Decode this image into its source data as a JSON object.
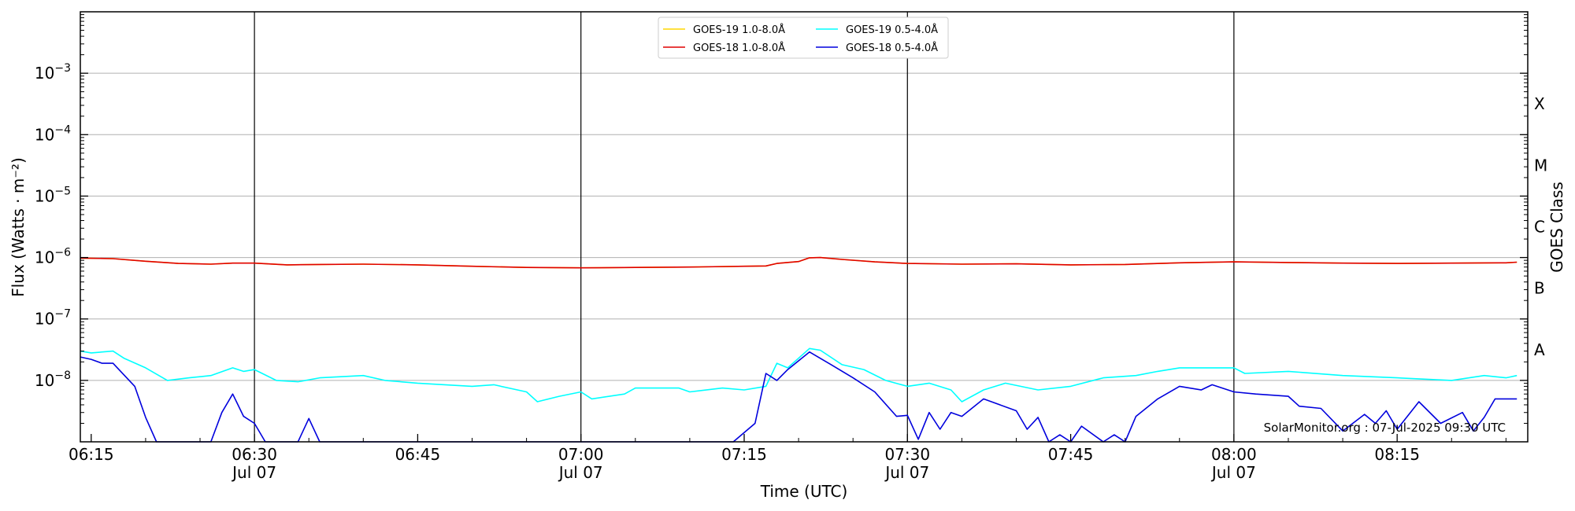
{
  "chart_data": {
    "type": "line",
    "title": "",
    "xlabel": "Time (UTC)",
    "ylabel": "Flux (Watts · m⁻²)",
    "ylabel_right": "GOES Class",
    "y_scale": "log",
    "ylim": [
      1e-09,
      0.01
    ],
    "xlim": [
      "06:14",
      "08:27"
    ],
    "grid": "horizontal",
    "legend_position": "top-center",
    "credit": "SolarMonitor.org : 07-Jul-2025 09:30 UTC",
    "y_ticks": [
      {
        "value": 0.001,
        "base": "10",
        "exp": "−3"
      },
      {
        "value": 0.0001,
        "base": "10",
        "exp": "−4"
      },
      {
        "value": 1e-05,
        "base": "10",
        "exp": "−5"
      },
      {
        "value": 1e-06,
        "base": "10",
        "exp": "−6"
      },
      {
        "value": 1e-07,
        "base": "10",
        "exp": "−7"
      },
      {
        "value": 1e-08,
        "base": "10",
        "exp": "−8"
      }
    ],
    "x_ticks": [
      {
        "time": "06:15",
        "label": "06:15",
        "sublabel": ""
      },
      {
        "time": "06:30",
        "label": "06:30",
        "sublabel": "Jul 07"
      },
      {
        "time": "06:45",
        "label": "06:45",
        "sublabel": ""
      },
      {
        "time": "07:00",
        "label": "07:00",
        "sublabel": "Jul 07"
      },
      {
        "time": "07:15",
        "label": "07:15",
        "sublabel": ""
      },
      {
        "time": "07:30",
        "label": "07:30",
        "sublabel": "Jul 07"
      },
      {
        "time": "07:45",
        "label": "07:45",
        "sublabel": ""
      },
      {
        "time": "08:00",
        "label": "08:00",
        "sublabel": "Jul 07"
      },
      {
        "time": "08:15",
        "label": "08:15",
        "sublabel": ""
      }
    ],
    "vlines": [
      "06:30",
      "07:00",
      "07:30",
      "08:00"
    ],
    "goes_classes": [
      {
        "label": "A",
        "value": 3.16e-08
      },
      {
        "label": "B",
        "value": 3.16e-07
      },
      {
        "label": "C",
        "value": 3.16e-06
      },
      {
        "label": "M",
        "value": 3.16e-05
      },
      {
        "label": "X",
        "value": 0.000316
      }
    ],
    "series": [
      {
        "name": "GOES-19 1.0-8.0Å",
        "color": "#ffd700",
        "points": [
          [
            "06:14",
            9.8e-07
          ],
          [
            "06:17",
            9.6e-07
          ],
          [
            "06:20",
            8.7e-07
          ],
          [
            "06:23",
            8e-07
          ],
          [
            "06:26",
            7.8e-07
          ],
          [
            "06:28",
            8.1e-07
          ],
          [
            "06:30",
            8.1e-07
          ],
          [
            "06:33",
            7.6e-07
          ],
          [
            "06:36",
            7.7e-07
          ],
          [
            "06:40",
            7.8e-07
          ],
          [
            "06:45",
            7.6e-07
          ],
          [
            "06:50",
            7.2e-07
          ],
          [
            "06:55",
            6.9e-07
          ],
          [
            "07:00",
            6.8e-07
          ],
          [
            "07:05",
            6.9e-07
          ],
          [
            "07:10",
            7e-07
          ],
          [
            "07:15",
            7.2e-07
          ],
          [
            "07:17",
            7.3e-07
          ],
          [
            "07:18",
            8e-07
          ],
          [
            "07:20",
            8.6e-07
          ],
          [
            "07:21",
            9.9e-07
          ],
          [
            "07:22",
            1e-06
          ],
          [
            "07:24",
            9.3e-07
          ],
          [
            "07:27",
            8.5e-07
          ],
          [
            "07:30",
            8e-07
          ],
          [
            "07:35",
            7.8e-07
          ],
          [
            "07:40",
            7.9e-07
          ],
          [
            "07:45",
            7.6e-07
          ],
          [
            "07:50",
            7.7e-07
          ],
          [
            "07:55",
            8.2e-07
          ],
          [
            "08:00",
            8.5e-07
          ],
          [
            "08:05",
            8.3e-07
          ],
          [
            "08:10",
            8.1e-07
          ],
          [
            "08:15",
            8e-07
          ],
          [
            "08:20",
            8.1e-07
          ],
          [
            "08:25",
            8.2e-07
          ],
          [
            "08:26",
            8.4e-07
          ]
        ]
      },
      {
        "name": "GOES-18 1.0-8.0Å",
        "color": "#e00000",
        "points": [
          [
            "06:14",
            9.8e-07
          ],
          [
            "06:17",
            9.6e-07
          ],
          [
            "06:20",
            8.7e-07
          ],
          [
            "06:23",
            8e-07
          ],
          [
            "06:26",
            7.8e-07
          ],
          [
            "06:28",
            8.1e-07
          ],
          [
            "06:30",
            8.1e-07
          ],
          [
            "06:33",
            7.6e-07
          ],
          [
            "06:36",
            7.7e-07
          ],
          [
            "06:40",
            7.8e-07
          ],
          [
            "06:45",
            7.6e-07
          ],
          [
            "06:50",
            7.2e-07
          ],
          [
            "06:55",
            6.9e-07
          ],
          [
            "07:00",
            6.8e-07
          ],
          [
            "07:05",
            6.9e-07
          ],
          [
            "07:10",
            7e-07
          ],
          [
            "07:15",
            7.2e-07
          ],
          [
            "07:17",
            7.3e-07
          ],
          [
            "07:18",
            8e-07
          ],
          [
            "07:20",
            8.6e-07
          ],
          [
            "07:21",
            9.9e-07
          ],
          [
            "07:22",
            1e-06
          ],
          [
            "07:24",
            9.3e-07
          ],
          [
            "07:27",
            8.5e-07
          ],
          [
            "07:30",
            8e-07
          ],
          [
            "07:35",
            7.8e-07
          ],
          [
            "07:40",
            7.9e-07
          ],
          [
            "07:45",
            7.6e-07
          ],
          [
            "07:50",
            7.7e-07
          ],
          [
            "07:55",
            8.2e-07
          ],
          [
            "08:00",
            8.5e-07
          ],
          [
            "08:05",
            8.3e-07
          ],
          [
            "08:10",
            8.1e-07
          ],
          [
            "08:15",
            8e-07
          ],
          [
            "08:20",
            8.1e-07
          ],
          [
            "08:25",
            8.2e-07
          ],
          [
            "08:26",
            8.4e-07
          ]
        ]
      },
      {
        "name": "GOES-19 0.5-4.0Å",
        "color": "#00ffff",
        "points": [
          [
            "06:14",
            3e-08
          ],
          [
            "06:15",
            2.8e-08
          ],
          [
            "06:17",
            3e-08
          ],
          [
            "06:18",
            2.3e-08
          ],
          [
            "06:20",
            1.6e-08
          ],
          [
            "06:22",
            1e-08
          ],
          [
            "06:24",
            1.1e-08
          ],
          [
            "06:26",
            1.2e-08
          ],
          [
            "06:28",
            1.6e-08
          ],
          [
            "06:29",
            1.4e-08
          ],
          [
            "06:30",
            1.5e-08
          ],
          [
            "06:32",
            1e-08
          ],
          [
            "06:34",
            9.5e-09
          ],
          [
            "06:36",
            1.1e-08
          ],
          [
            "06:40",
            1.2e-08
          ],
          [
            "06:42",
            1e-08
          ],
          [
            "06:45",
            9e-09
          ],
          [
            "06:50",
            8e-09
          ],
          [
            "06:52",
            8.5e-09
          ],
          [
            "06:55",
            6.5e-09
          ],
          [
            "06:56",
            4.5e-09
          ],
          [
            "06:58",
            5.5e-09
          ],
          [
            "07:00",
            6.5e-09
          ],
          [
            "07:01",
            5e-09
          ],
          [
            "07:04",
            6e-09
          ],
          [
            "07:05",
            7.5e-09
          ],
          [
            "07:09",
            7.5e-09
          ],
          [
            "07:10",
            6.5e-09
          ],
          [
            "07:13",
            7.5e-09
          ],
          [
            "07:15",
            7e-09
          ],
          [
            "07:17",
            8e-09
          ],
          [
            "07:18",
            1.9e-08
          ],
          [
            "07:19",
            1.6e-08
          ],
          [
            "07:21",
            3.3e-08
          ],
          [
            "07:22",
            3.1e-08
          ],
          [
            "07:24",
            1.8e-08
          ],
          [
            "07:26",
            1.5e-08
          ],
          [
            "07:28",
            1e-08
          ],
          [
            "07:30",
            8e-09
          ],
          [
            "07:32",
            9e-09
          ],
          [
            "07:34",
            7e-09
          ],
          [
            "07:35",
            4.5e-09
          ],
          [
            "07:37",
            7e-09
          ],
          [
            "07:39",
            9e-09
          ],
          [
            "07:42",
            7e-09
          ],
          [
            "07:45",
            8e-09
          ],
          [
            "07:48",
            1.1e-08
          ],
          [
            "07:51",
            1.2e-08
          ],
          [
            "07:53",
            1.4e-08
          ],
          [
            "07:55",
            1.6e-08
          ],
          [
            "08:00",
            1.6e-08
          ],
          [
            "08:01",
            1.3e-08
          ],
          [
            "08:05",
            1.4e-08
          ],
          [
            "08:10",
            1.2e-08
          ],
          [
            "08:15",
            1.1e-08
          ],
          [
            "08:20",
            1e-08
          ],
          [
            "08:23",
            1.2e-08
          ],
          [
            "08:25",
            1.1e-08
          ],
          [
            "08:26",
            1.2e-08
          ]
        ]
      },
      {
        "name": "GOES-18 0.5-4.0Å",
        "color": "#0000dd",
        "points": [
          [
            "06:14",
            2.4e-08
          ],
          [
            "06:15",
            2.2e-08
          ],
          [
            "06:16",
            1.9e-08
          ],
          [
            "06:17",
            1.9e-08
          ],
          [
            "06:19",
            8e-09
          ],
          [
            "06:20",
            2.5e-09
          ],
          [
            "06:21",
            9e-10
          ],
          [
            "06:26",
            9e-10
          ],
          [
            "06:27",
            3e-09
          ],
          [
            "06:28",
            6e-09
          ],
          [
            "06:29",
            2.6e-09
          ],
          [
            "06:30",
            2e-09
          ],
          [
            "06:31",
            9e-10
          ],
          [
            "06:34",
            9e-10
          ],
          [
            "06:35",
            2.4e-09
          ],
          [
            "06:36",
            9e-10
          ],
          [
            "07:14",
            9e-10
          ],
          [
            "07:16",
            2e-09
          ],
          [
            "07:17",
            1.3e-08
          ],
          [
            "07:18",
            1e-08
          ],
          [
            "07:19",
            1.5e-08
          ],
          [
            "07:21",
            2.9e-08
          ],
          [
            "07:23",
            1.8e-08
          ],
          [
            "07:25",
            1.1e-08
          ],
          [
            "07:27",
            6.5e-09
          ],
          [
            "07:29",
            2.6e-09
          ],
          [
            "07:30",
            2.7e-09
          ],
          [
            "07:31",
            1.1e-09
          ],
          [
            "07:32",
            3e-09
          ],
          [
            "07:33",
            1.6e-09
          ],
          [
            "07:34",
            3e-09
          ],
          [
            "07:35",
            2.6e-09
          ],
          [
            "07:37",
            5e-09
          ],
          [
            "07:40",
            3.2e-09
          ],
          [
            "07:41",
            1.6e-09
          ],
          [
            "07:42",
            2.5e-09
          ],
          [
            "07:43",
            1e-09
          ],
          [
            "07:44",
            1.3e-09
          ],
          [
            "07:45",
            9e-10
          ],
          [
            "07:46",
            1.8e-09
          ],
          [
            "07:48",
            1e-09
          ],
          [
            "07:49",
            1.3e-09
          ],
          [
            "07:50",
            1e-09
          ],
          [
            "07:51",
            2.6e-09
          ],
          [
            "07:53",
            5e-09
          ],
          [
            "07:55",
            8e-09
          ],
          [
            "07:57",
            7e-09
          ],
          [
            "07:58",
            8.5e-09
          ],
          [
            "08:00",
            6.5e-09
          ],
          [
            "08:02",
            6e-09
          ],
          [
            "08:05",
            5.5e-09
          ],
          [
            "08:06",
            3.8e-09
          ],
          [
            "08:08",
            3.5e-09
          ],
          [
            "08:10",
            1.5e-09
          ],
          [
            "08:12",
            2.8e-09
          ],
          [
            "08:13",
            2e-09
          ],
          [
            "08:14",
            3.2e-09
          ],
          [
            "08:15",
            1.6e-09
          ],
          [
            "08:17",
            4.5e-09
          ],
          [
            "08:19",
            2e-09
          ],
          [
            "08:21",
            3e-09
          ],
          [
            "08:22",
            1.5e-09
          ],
          [
            "08:23",
            2.5e-09
          ],
          [
            "08:24",
            5e-09
          ],
          [
            "08:26",
            5e-09
          ]
        ]
      }
    ]
  }
}
